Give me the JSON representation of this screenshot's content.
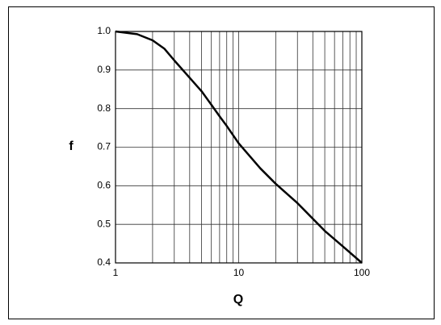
{
  "chart_data": {
    "type": "line",
    "xlabel": "Q",
    "ylabel": "f",
    "x": [
      1,
      1.5,
      2,
      2.5,
      3,
      4,
      5,
      6,
      7,
      8,
      10,
      15,
      20,
      30,
      50,
      70,
      100
    ],
    "series": [
      {
        "color": "#000000",
        "values": [
          1.0,
          0.993,
          0.977,
          0.955,
          0.925,
          0.88,
          0.845,
          0.81,
          0.78,
          0.755,
          0.71,
          0.645,
          0.605,
          0.555,
          0.483,
          0.443,
          0.4
        ]
      }
    ],
    "xlim": [
      1,
      100
    ],
    "xscale": "log",
    "xticks": [
      1,
      10,
      100
    ],
    "x_minor_ticks": [
      2,
      3,
      4,
      5,
      6,
      7,
      8,
      9,
      20,
      30,
      40,
      50,
      60,
      70,
      80,
      90
    ],
    "ylim": [
      0.4,
      1.0
    ],
    "yticks": [
      0.4,
      0.5,
      0.6,
      0.7,
      0.8,
      0.9,
      {
        "value": 1.0,
        "label": "1.0"
      }
    ],
    "grid": true
  }
}
